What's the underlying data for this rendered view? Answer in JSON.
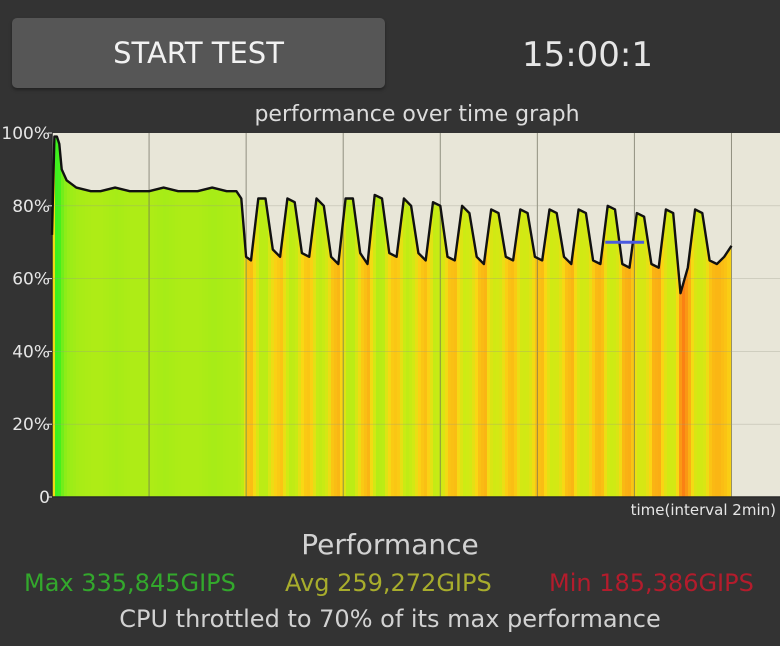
{
  "header": {
    "start_button_label": "START TEST",
    "timer": "15:00:1"
  },
  "chart_data": {
    "type": "area",
    "title": "performance over time graph",
    "xlabel": "time(interval 2min)",
    "ylabel": "",
    "ylim": [
      0,
      100
    ],
    "yticks": [
      "0",
      "20%",
      "40%",
      "60%",
      "80%",
      "100%"
    ],
    "x_range_minutes": [
      0,
      15
    ],
    "grid": true,
    "series": [
      {
        "x": [
          0.0,
          0.05,
          0.1,
          0.15,
          0.2,
          0.3,
          0.5,
          0.8,
          1.0,
          1.3,
          1.6,
          2.0,
          2.3,
          2.6,
          3.0,
          3.3,
          3.6,
          3.8,
          3.9,
          4.0,
          4.1,
          4.25,
          4.4,
          4.55,
          4.7,
          4.85,
          5.0,
          5.15,
          5.3,
          5.45,
          5.6,
          5.75,
          5.9,
          6.05,
          6.2,
          6.35,
          6.5,
          6.65,
          6.8,
          6.95,
          7.1,
          7.25,
          7.4,
          7.55,
          7.7,
          7.85,
          8.0,
          8.15,
          8.3,
          8.45,
          8.6,
          8.75,
          8.9,
          9.05,
          9.2,
          9.35,
          9.5,
          9.65,
          9.8,
          9.95,
          10.1,
          10.25,
          10.4,
          10.55,
          10.7,
          10.85,
          11.0,
          11.15,
          11.3,
          11.45,
          11.6,
          11.75,
          11.9,
          12.05,
          12.2,
          12.35,
          12.5,
          12.65,
          12.8,
          12.95,
          13.1,
          13.25,
          13.4,
          13.55,
          13.7,
          13.85,
          14.0
        ],
        "values": [
          72,
          99,
          99,
          97,
          90,
          87,
          85,
          84,
          84,
          85,
          84,
          84,
          85,
          84,
          84,
          85,
          84,
          84,
          82,
          66,
          65,
          82,
          82,
          68,
          66,
          82,
          81,
          67,
          66,
          82,
          80,
          66,
          64,
          82,
          82,
          67,
          64,
          83,
          82,
          67,
          66,
          82,
          80,
          67,
          65,
          81,
          80,
          66,
          65,
          80,
          78,
          66,
          64,
          79,
          78,
          66,
          65,
          79,
          78,
          66,
          65,
          79,
          78,
          66,
          64,
          79,
          78,
          65,
          64,
          80,
          79,
          64,
          63,
          78,
          77,
          64,
          63,
          79,
          78,
          56,
          63,
          79,
          78,
          65,
          64,
          66,
          69
        ]
      }
    ],
    "annotation_line": {
      "x_start": 11.4,
      "x_end": 12.2,
      "value": 70,
      "color": "#4a5ae0"
    }
  },
  "summary": {
    "heading": "Performance",
    "max_text": "Max 335,845GIPS",
    "avg_text": "Avg 259,272GIPS",
    "min_text": "Min 185,386GIPS",
    "throttle_text": "CPU throttled to 70% of its max performance"
  },
  "colors": {
    "background": "#333333",
    "plot_background": "#e8e6d8",
    "max_color": "#33a82c",
    "avg_color": "#a8ad2c",
    "min_color": "#b31c2c",
    "curve": "#111111"
  }
}
